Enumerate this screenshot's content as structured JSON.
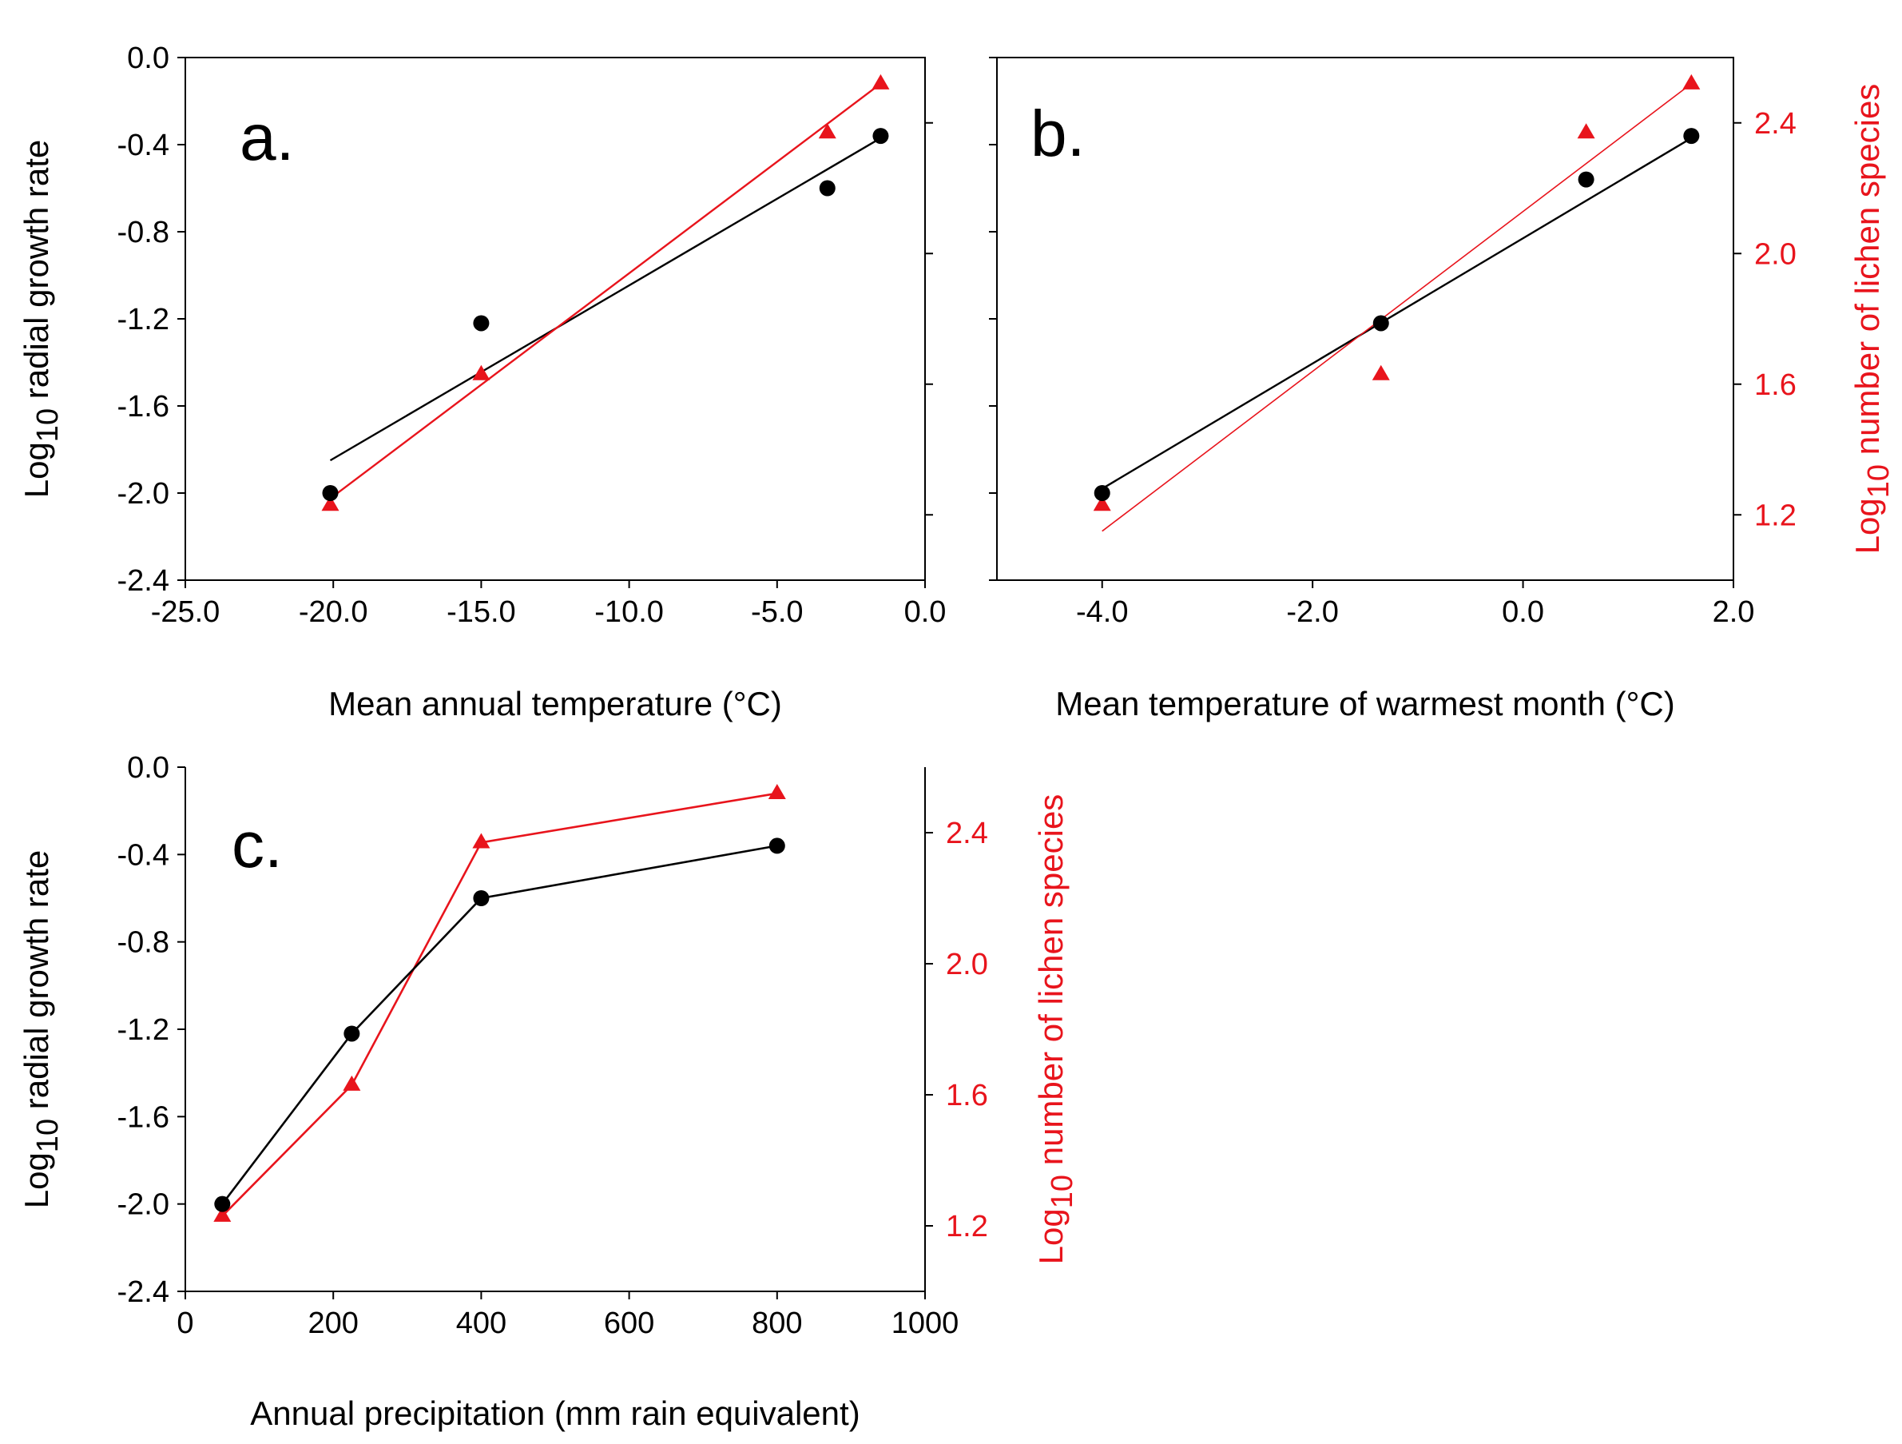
{
  "figure": {
    "background": "#ffffff"
  },
  "series_legend": {
    "growth": {
      "name": "Log10 radial growth rate",
      "marker": "circle",
      "color": "#000000"
    },
    "species": {
      "name": "Log10 number of lichen species",
      "marker": "triangle",
      "color": "#e8141c"
    }
  },
  "chart_data": [
    {
      "id": "a",
      "type": "scatter",
      "panel_label": "a.",
      "xlabel": "Mean annual temperature (°C)",
      "ylabel_base": "Log",
      "ylabel_sub": "10",
      "ylabel_rest": " radial growth rate",
      "xlim": [
        -25,
        0
      ],
      "xticks": [
        -25,
        -20,
        -15,
        -10,
        -5,
        0
      ],
      "xtick_labels": [
        "-25.0",
        "-20.0",
        "-15.0",
        "-10.0",
        "-5.0",
        "0.0"
      ],
      "ylim": [
        -2.4,
        0
      ],
      "yticks": [
        0,
        -0.4,
        -0.8,
        -1.2,
        -1.6,
        -2.0,
        -2.4
      ],
      "ytick_labels": [
        "0.0",
        "-0.4",
        "-0.8",
        "-1.2",
        "-1.6",
        "-2.0",
        "-2.4"
      ],
      "y2lim": [
        1.0,
        2.6
      ],
      "y2ticks": [
        1.2,
        1.6,
        2.0,
        2.4
      ],
      "y2tick_labels": [],
      "series": [
        {
          "name": "Log10 radial growth rate",
          "axis": "left",
          "color": "#000000",
          "marker": "circle",
          "x": [
            -20.1,
            -15.0,
            -3.3,
            -1.5
          ],
          "y": [
            -2.0,
            -1.22,
            -0.6,
            -0.36
          ]
        },
        {
          "name": "Log10 number of lichen species",
          "axis": "right",
          "color": "#e8141c",
          "marker": "triangle",
          "x": [
            -20.1,
            -15.0,
            -3.3,
            -1.5
          ],
          "y": [
            1.23,
            1.63,
            2.37,
            2.52
          ]
        }
      ],
      "fits": [
        {
          "series": "Log10 radial growth rate",
          "axis": "left",
          "color": "#000000",
          "x": [
            -20.1,
            -1.5
          ],
          "y": [
            -1.85,
            -0.37
          ]
        },
        {
          "series": "Log10 number of lichen species",
          "axis": "right",
          "color": "#e8141c",
          "x": [
            -20.1,
            -1.5
          ],
          "y": [
            1.25,
            2.52
          ]
        }
      ]
    },
    {
      "id": "b",
      "type": "scatter",
      "panel_label": "b.",
      "xlabel": "Mean temperature of warmest month (°C)",
      "y2label_base": "Log",
      "y2label_sub": "10",
      "y2label_rest": " number of lichen species",
      "xlim": [
        -5,
        2
      ],
      "xticks": [
        -4,
        -2,
        0,
        2
      ],
      "xtick_labels": [
        "-4.0",
        "-2.0",
        "0.0",
        "2.0"
      ],
      "ylim": [
        -2.4,
        0
      ],
      "yticks": [
        0,
        -0.4,
        -0.8,
        -1.2,
        -1.6,
        -2.0,
        -2.4
      ],
      "ytick_labels": [],
      "y2lim": [
        1.0,
        2.6
      ],
      "y2ticks": [
        1.2,
        1.6,
        2.0,
        2.4
      ],
      "y2tick_labels": [
        "1.2",
        "1.6",
        "2.0",
        "2.4"
      ],
      "series": [
        {
          "name": "Log10 radial growth rate",
          "axis": "left",
          "color": "#000000",
          "marker": "circle",
          "x": [
            -4.0,
            -1.35,
            0.6,
            1.6
          ],
          "y": [
            -2.0,
            -1.22,
            -0.56,
            -0.36
          ]
        },
        {
          "name": "Log10 number of lichen species",
          "axis": "right",
          "color": "#e8141c",
          "marker": "triangle",
          "x": [
            -4.0,
            -1.35,
            0.6,
            1.6
          ],
          "y": [
            1.23,
            1.63,
            2.37,
            2.52
          ]
        }
      ],
      "fits": [
        {
          "series": "Log10 radial growth rate",
          "axis": "left",
          "color": "#000000",
          "x": [
            -4.0,
            1.6
          ],
          "y": [
            -1.98,
            -0.37
          ]
        },
        {
          "series": "Log10 number of lichen species",
          "axis": "right",
          "color": "#e8141c",
          "x": [
            -4.0,
            1.6
          ],
          "y": [
            1.15,
            2.52
          ]
        }
      ]
    },
    {
      "id": "c",
      "type": "line",
      "panel_label": "c.",
      "xlabel": "Annual precipitation (mm rain equivalent)",
      "ylabel_base": "Log",
      "ylabel_sub": "10",
      "ylabel_rest": " radial growth rate",
      "y2label_base": "Log",
      "y2label_sub": "10",
      "y2label_rest": " number of lichen species",
      "xlim": [
        0,
        1000
      ],
      "xticks": [
        0,
        200,
        400,
        600,
        800,
        1000
      ],
      "xtick_labels": [
        "0",
        "200",
        "400",
        "600",
        "800",
        "1000"
      ],
      "ylim": [
        -2.4,
        0
      ],
      "yticks": [
        0,
        -0.4,
        -0.8,
        -1.2,
        -1.6,
        -2.0,
        -2.4
      ],
      "ytick_labels": [
        "0.0",
        "-0.4",
        "-0.8",
        "-1.2",
        "-1.6",
        "-2.0",
        "-2.4"
      ],
      "y2lim": [
        1.0,
        2.6
      ],
      "y2ticks": [
        1.2,
        1.6,
        2.0,
        2.4
      ],
      "y2tick_labels": [
        "1.2",
        "1.6",
        "2.0",
        "2.4"
      ],
      "series": [
        {
          "name": "Log10 radial growth rate",
          "axis": "left",
          "color": "#000000",
          "marker": "circle",
          "connect": true,
          "x": [
            50,
            225,
            400,
            800
          ],
          "y": [
            -2.0,
            -1.22,
            -0.6,
            -0.36
          ]
        },
        {
          "name": "Log10 number of lichen species",
          "axis": "right",
          "color": "#e8141c",
          "marker": "triangle",
          "connect": true,
          "x": [
            50,
            225,
            400,
            800
          ],
          "y": [
            1.23,
            1.63,
            2.37,
            2.52
          ]
        }
      ],
      "fits": []
    }
  ]
}
